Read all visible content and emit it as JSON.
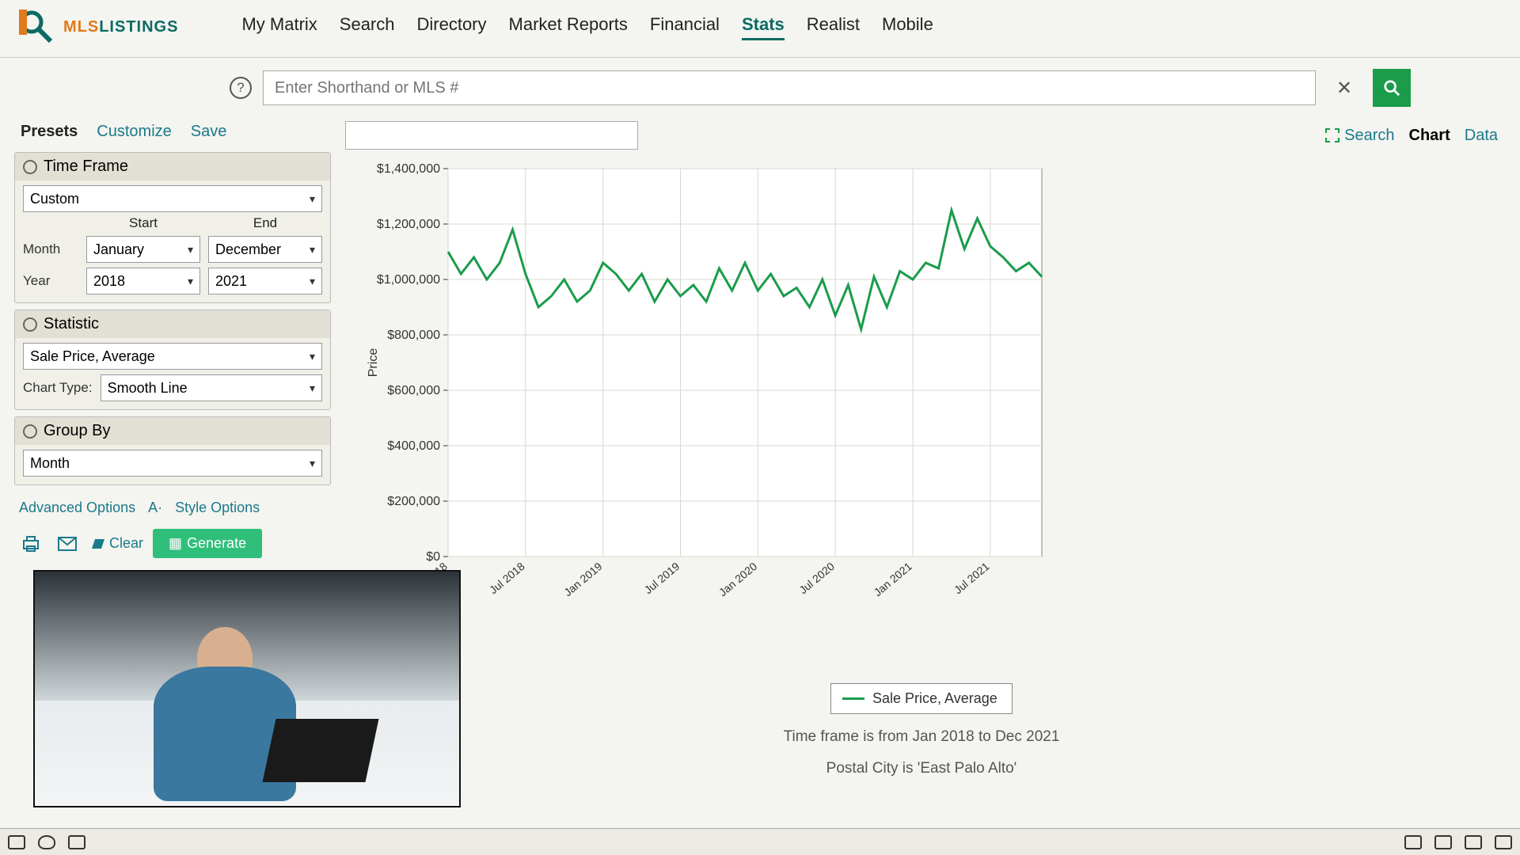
{
  "brand": {
    "name1": "MLS",
    "name2": "LISTINGS"
  },
  "nav": {
    "items": [
      "My Matrix",
      "Search",
      "Directory",
      "Market Reports",
      "Financial",
      "Stats",
      "Realist",
      "Mobile"
    ],
    "active_index": 5
  },
  "search": {
    "placeholder": "Enter Shorthand or MLS #"
  },
  "sidebar": {
    "tabs": {
      "presets": "Presets",
      "customize": "Customize",
      "save": "Save"
    },
    "timeframe": {
      "title": "Time Frame",
      "preset": "Custom",
      "start_label": "Start",
      "end_label": "End",
      "month_label": "Month",
      "year_label": "Year",
      "start_month": "January",
      "end_month": "December",
      "start_year": "2018",
      "end_year": "2021"
    },
    "statistic": {
      "title": "Statistic",
      "value": "Sale Price, Average",
      "charttype_label": "Chart Type:",
      "charttype": "Smooth Line"
    },
    "groupby": {
      "title": "Group By",
      "value": "Month"
    },
    "advanced": "Advanced Options",
    "textsize": "A·",
    "style": "Style Options",
    "clear": "Clear",
    "generate": "Generate"
  },
  "toolbar": {
    "search": "Search",
    "chart": "Chart",
    "data": "Data"
  },
  "chart": {
    "type": "line",
    "series_name": "Sale Price, Average",
    "line_color": "#1a9c4b",
    "line_width": 3,
    "background_color": "#ffffff",
    "grid_color": "#d8d8d0",
    "ylabel": "Price",
    "ylim": [
      0,
      1400000
    ],
    "yticks": [
      0,
      200000,
      400000,
      600000,
      800000,
      1000000,
      1200000,
      1400000
    ],
    "ytick_labels": [
      "$0",
      "$200,000",
      "$400,000",
      "$600,000",
      "$800,000",
      "$1,000,000",
      "$1,200,000",
      "$1,400,000"
    ],
    "x_labels": [
      "Jan 2018",
      "Jul 2018",
      "Jan 2019",
      "Jul 2019",
      "Jan 2020",
      "Jul 2020",
      "Jan 2021",
      "Jul 2021"
    ],
    "x_months": [
      "2018-01",
      "2018-02",
      "2018-03",
      "2018-04",
      "2018-05",
      "2018-06",
      "2018-07",
      "2018-08",
      "2018-09",
      "2018-10",
      "2018-11",
      "2018-12",
      "2019-01",
      "2019-02",
      "2019-03",
      "2019-04",
      "2019-05",
      "2019-06",
      "2019-07",
      "2019-08",
      "2019-09",
      "2019-10",
      "2019-11",
      "2019-12",
      "2020-01",
      "2020-02",
      "2020-03",
      "2020-04",
      "2020-05",
      "2020-06",
      "2020-07",
      "2020-08",
      "2020-09",
      "2020-10",
      "2020-11",
      "2020-12",
      "2021-01",
      "2021-02",
      "2021-03",
      "2021-04",
      "2021-05",
      "2021-06",
      "2021-07",
      "2021-08",
      "2021-09",
      "2021-10",
      "2021-11"
    ],
    "values": [
      1100000,
      1020000,
      1080000,
      1000000,
      1060000,
      1180000,
      1020000,
      900000,
      940000,
      1000000,
      920000,
      960000,
      1060000,
      1020000,
      960000,
      1020000,
      920000,
      1000000,
      940000,
      980000,
      920000,
      1040000,
      960000,
      1060000,
      960000,
      1020000,
      940000,
      970000,
      900000,
      1000000,
      870000,
      980000,
      820000,
      1010000,
      900000,
      1030000,
      1000000,
      1060000,
      1040000,
      1250000,
      1110000,
      1220000,
      1120000,
      1080000,
      1030000,
      1060000,
      1010000
    ]
  },
  "legend_label": "Sale Price, Average",
  "caption1": "Time frame is from Jan 2018 to Dec 2021",
  "caption2": "Postal City is 'East Palo Alto'"
}
